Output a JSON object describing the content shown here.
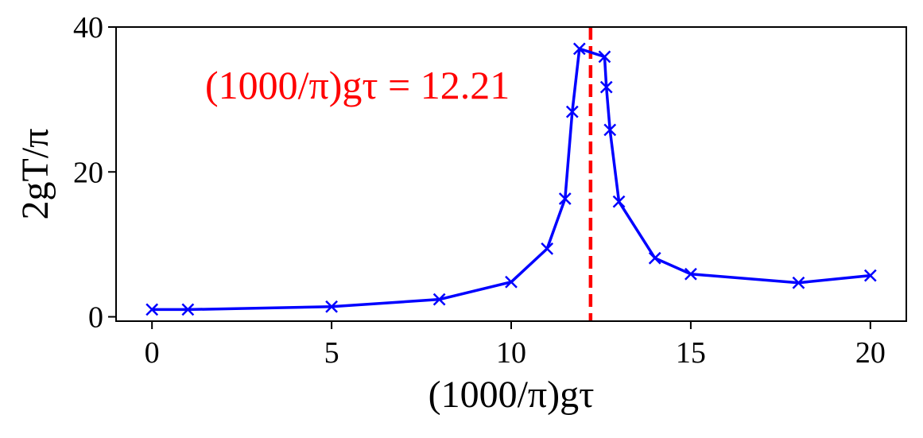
{
  "chart_data": {
    "type": "line",
    "xlabel": "(1000/π)gτ",
    "ylabel": "2gT/π",
    "xlim": [
      -1,
      21
    ],
    "ylim": [
      -0.6,
      40
    ],
    "x_ticks": [
      0,
      5,
      10,
      15,
      20
    ],
    "y_ticks": [
      0,
      20,
      40
    ],
    "grid": false,
    "series": [
      {
        "color": "#0000ff",
        "marker": "x",
        "points": [
          [
            0,
            1.0
          ],
          [
            1,
            1.0
          ],
          [
            5,
            1.4
          ],
          [
            8,
            2.4
          ],
          [
            10,
            4.8
          ],
          [
            11,
            9.4
          ],
          [
            11.5,
            16.3
          ],
          [
            11.7,
            28.3
          ],
          [
            11.9,
            37.0
          ],
          [
            12.6,
            35.9
          ],
          [
            12.65,
            31.7
          ],
          [
            12.75,
            25.8
          ],
          [
            13,
            15.9
          ],
          [
            14,
            8.1
          ],
          [
            15,
            5.9
          ],
          [
            18,
            4.7
          ],
          [
            20,
            5.7
          ]
        ]
      }
    ],
    "reference_line": {
      "x": 12.21,
      "color": "#ff0000",
      "style": "dashed"
    },
    "annotation": {
      "label": "(1000/π)gτ = 12.21",
      "color": "#ff0000"
    }
  }
}
